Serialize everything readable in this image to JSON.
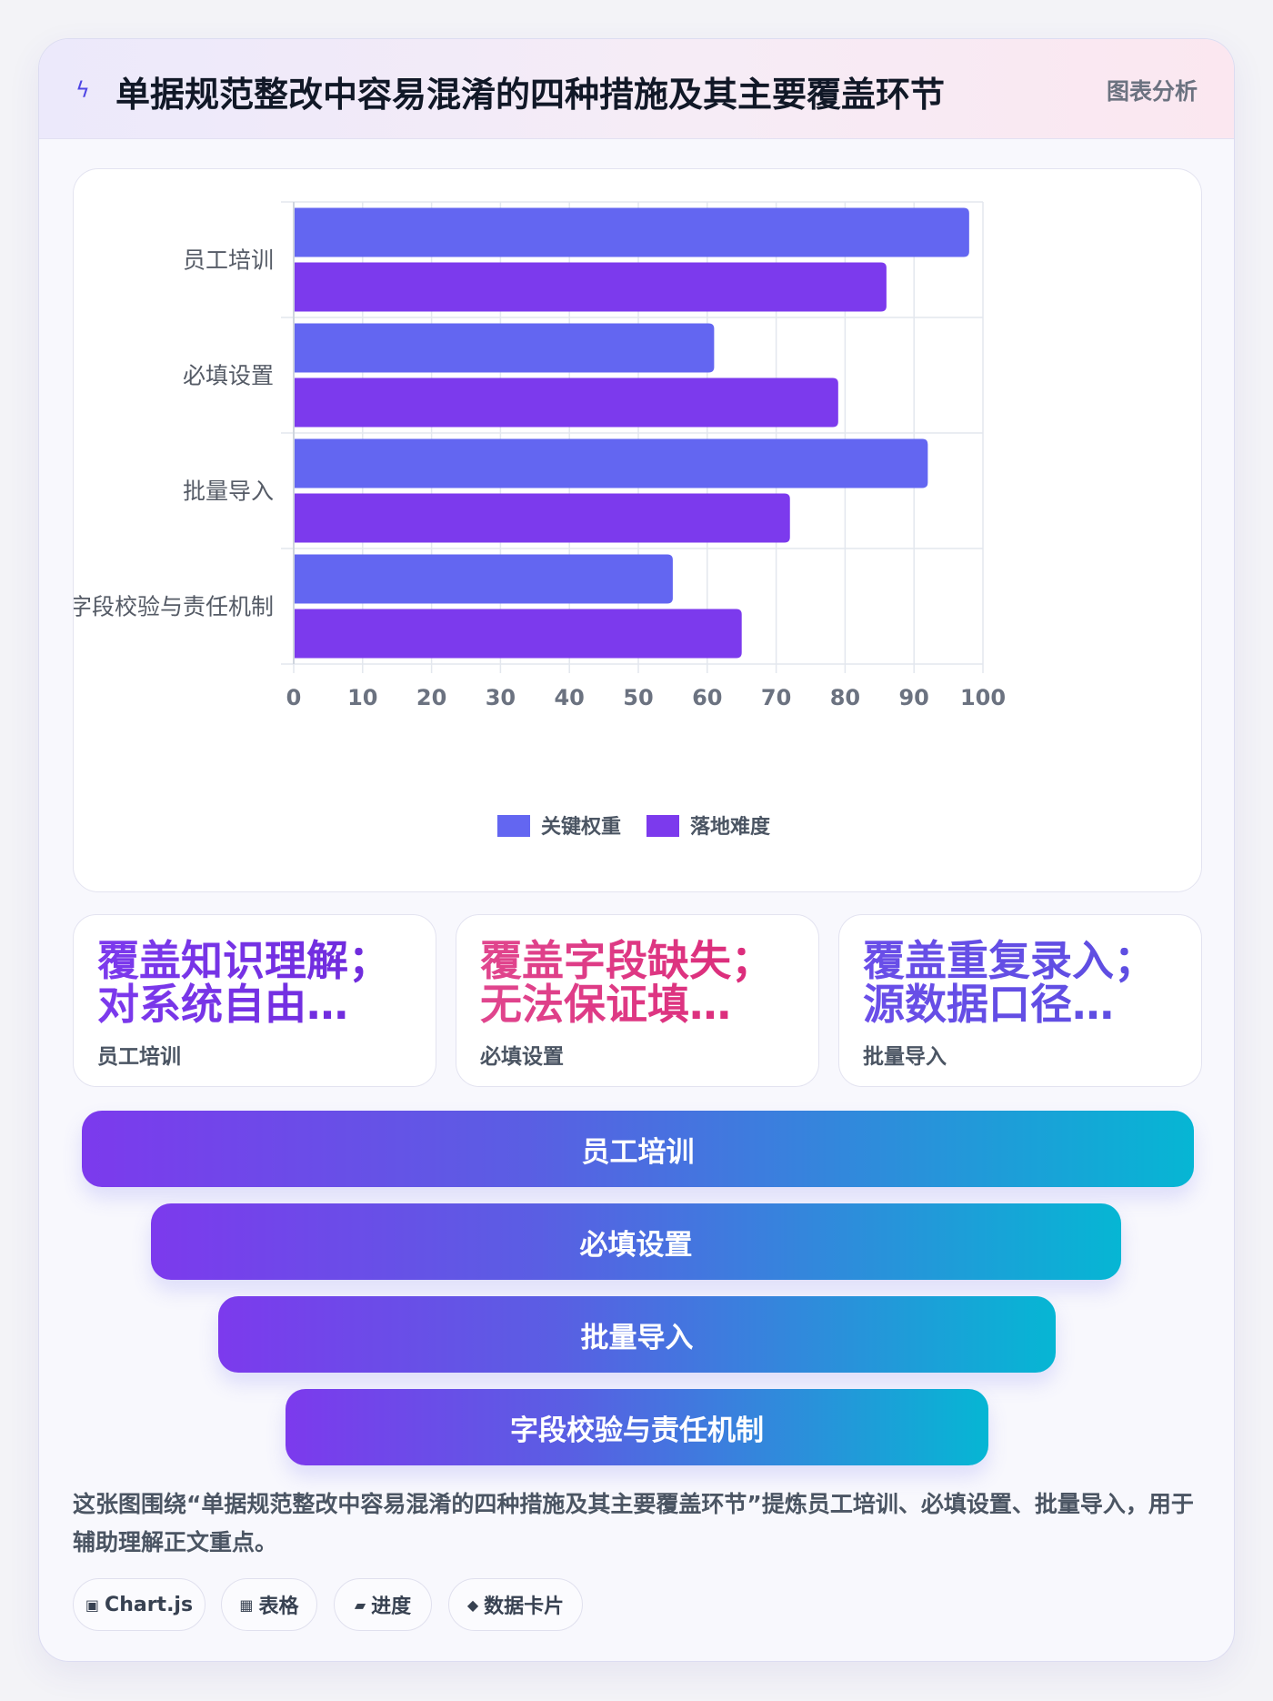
{
  "header": {
    "icon": "lightning-icon",
    "title": "单据规范整改中容易混淆的四种措施及其主要覆盖环节",
    "tag": "图表分析"
  },
  "chart_data": {
    "type": "bar",
    "orientation": "horizontal",
    "categories": [
      "员工培训",
      "必填设置",
      "批量导入",
      "字段校验与责任机制"
    ],
    "series": [
      {
        "name": "关键权重",
        "color": "#6366f1",
        "values": [
          98,
          61,
          92,
          55
        ]
      },
      {
        "name": "落地难度",
        "color": "#7c3aed",
        "values": [
          86,
          79,
          72,
          65
        ]
      }
    ],
    "xlim": [
      0,
      100
    ],
    "xticks": [
      0,
      10,
      20,
      30,
      40,
      50,
      60,
      70,
      80,
      90,
      100
    ],
    "grid": true,
    "legend_position": "bottom"
  },
  "cards": [
    {
      "value": "覆盖知识理解；\n对系统自由…",
      "label": "员工培训",
      "color_from": "#7c3aed",
      "color_to": "#6d28d9"
    },
    {
      "value": "覆盖字段缺失；\n无法保证填…",
      "label": "必填设置",
      "color_from": "#e0468e",
      "color_to": "#db2777"
    },
    {
      "value": "覆盖重复录入；\n源数据口径…",
      "label": "批量导入",
      "color_from": "#6a4ee8",
      "color_to": "#5b4ee0"
    }
  ],
  "funnel": [
    "员工培训",
    "必填设置",
    "批量导入",
    "字段校验与责任机制"
  ],
  "description": "这张图围绕“单据规范整改中容易混淆的四种措施及其主要覆盖环节”提炼员工培训、必填设置、批量导入，用于辅助理解正文重点。",
  "chips": [
    {
      "icon": "▣",
      "icon_name": "chart-icon",
      "label": "Chart.js"
    },
    {
      "icon": "▦",
      "icon_name": "table-icon",
      "label": "表格"
    },
    {
      "icon": "▰",
      "icon_name": "progress-icon",
      "label": "进度"
    },
    {
      "icon": "◆",
      "icon_name": "data-card-icon",
      "label": "数据卡片"
    }
  ]
}
